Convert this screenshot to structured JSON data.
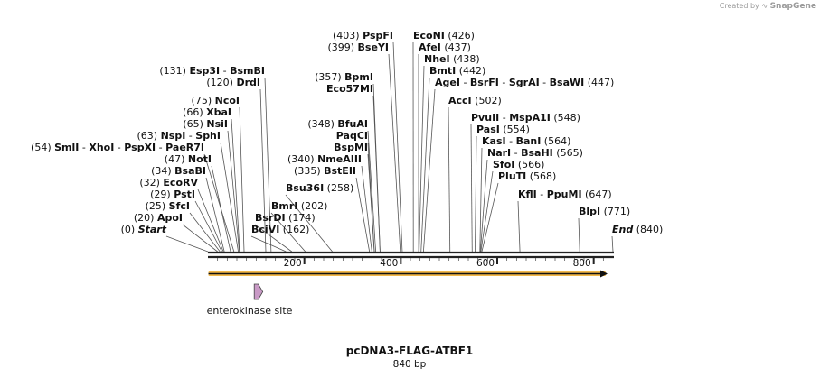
{
  "credit": {
    "prefix": "Created by",
    "brand": "SnapGene"
  },
  "plasmid": {
    "name": "pcDNA3-FLAG-ATBF1",
    "length_label": "840 bp",
    "length": 840
  },
  "axis": {
    "ticks": [
      200,
      400,
      600,
      800
    ]
  },
  "feature": {
    "name": "enterokinase site",
    "start": 96,
    "end": 110,
    "color": "#c99ac6"
  },
  "orf_arrow": {
    "start": 1,
    "end": 825,
    "color": "#f2b94b"
  },
  "site_groups": [
    {
      "pos": 0,
      "labels": [
        {
          "pos": "(0)",
          "names": [
            "Start"
          ],
          "italic": true
        }
      ]
    },
    {
      "pos": 20,
      "labels": [
        {
          "pos": "(20)",
          "names": [
            "ApoI"
          ]
        }
      ]
    },
    {
      "pos": 25,
      "labels": [
        {
          "pos": "(25)",
          "names": [
            "SfcI"
          ]
        }
      ]
    },
    {
      "pos": 29,
      "labels": [
        {
          "pos": "(29)",
          "names": [
            "PstI"
          ]
        }
      ]
    },
    {
      "pos": 32,
      "labels": [
        {
          "pos": "(32)",
          "names": [
            "EcoRV"
          ]
        }
      ]
    },
    {
      "pos": 34,
      "labels": [
        {
          "pos": "(34)",
          "names": [
            "BsaBI"
          ]
        }
      ]
    },
    {
      "pos": 47,
      "labels": [
        {
          "pos": "(47)",
          "names": [
            "NotI"
          ]
        }
      ]
    },
    {
      "pos": 54,
      "labels": [
        {
          "pos": "(54)",
          "names": [
            "SmlI",
            "XhoI",
            "PspXI",
            "PaeR7I"
          ]
        }
      ]
    },
    {
      "pos": 63,
      "labels": [
        {
          "pos": "(63)",
          "names": [
            "NspI",
            "SphI"
          ]
        }
      ]
    },
    {
      "pos": 65,
      "labels": [
        {
          "pos": "(65)",
          "names": [
            "NsiI"
          ]
        }
      ]
    },
    {
      "pos": 66,
      "labels": [
        {
          "pos": "(66)",
          "names": [
            "XbaI"
          ]
        }
      ]
    },
    {
      "pos": 75,
      "labels": [
        {
          "pos": "(75)",
          "names": [
            "NcoI"
          ]
        }
      ]
    },
    {
      "pos": 120,
      "labels": [
        {
          "pos": "(120)",
          "names": [
            "DrdI"
          ]
        }
      ]
    },
    {
      "pos": 131,
      "labels": [
        {
          "pos": "(131)",
          "names": [
            "Esp3I",
            "BsmBI"
          ]
        }
      ]
    },
    {
      "pos": 162,
      "labels": [
        {
          "pos": "(162)",
          "names": [
            "BciVI"
          ]
        }
      ]
    },
    {
      "pos": 174,
      "labels": [
        {
          "pos": "(174)",
          "names": [
            "BsrDI"
          ]
        }
      ]
    },
    {
      "pos": 202,
      "labels": [
        {
          "pos": "(202)",
          "names": [
            "BmrI"
          ]
        }
      ]
    },
    {
      "pos": 258,
      "labels": [
        {
          "pos": "(258)",
          "names": [
            "Bsu36I"
          ]
        }
      ]
    },
    {
      "pos": 335,
      "labels": [
        {
          "pos": "(335)",
          "names": [
            "BstEII"
          ]
        }
      ]
    },
    {
      "pos": 340,
      "labels": [
        {
          "pos": "(340)",
          "names": [
            "NmeAIII"
          ]
        }
      ]
    },
    {
      "pos": 345,
      "labels": [
        {
          "pos": "",
          "names": [
            "BspMI"
          ]
        }
      ]
    },
    {
      "pos": 345,
      "labels": [
        {
          "pos": "",
          "names": [
            "PaqCI"
          ]
        }
      ]
    },
    {
      "pos": 348,
      "labels": [
        {
          "pos": "(348)",
          "names": [
            "BfuAI"
          ]
        }
      ]
    },
    {
      "pos": 357,
      "labels": [
        {
          "pos": "",
          "names": [
            "Eco57MI"
          ]
        }
      ]
    },
    {
      "pos": 357,
      "labels": [
        {
          "pos": "(357)",
          "names": [
            "BpmI"
          ]
        }
      ]
    },
    {
      "pos": 399,
      "labels": [
        {
          "pos": "(399)",
          "names": [
            "BseYI"
          ]
        }
      ]
    },
    {
      "pos": 403,
      "labels": [
        {
          "pos": "(403)",
          "names": [
            "PspFI"
          ]
        }
      ]
    },
    {
      "pos": 426,
      "labels": [
        {
          "pos": "(426)",
          "names": [
            "EcoNI"
          ]
        }
      ]
    },
    {
      "pos": 437,
      "labels": [
        {
          "pos": "(437)",
          "names": [
            "AfeI"
          ]
        }
      ]
    },
    {
      "pos": 438,
      "labels": [
        {
          "pos": "(438)",
          "names": [
            "NheI"
          ]
        }
      ]
    },
    {
      "pos": 442,
      "labels": [
        {
          "pos": "(442)",
          "names": [
            "BmtI"
          ]
        }
      ]
    },
    {
      "pos": 447,
      "labels": [
        {
          "pos": "(447)",
          "names": [
            "AgeI",
            "BsrFI",
            "SgrAI",
            "BsaWI"
          ]
        }
      ]
    },
    {
      "pos": 502,
      "labels": [
        {
          "pos": "(502)",
          "names": [
            "AccI"
          ]
        }
      ]
    },
    {
      "pos": 548,
      "labels": [
        {
          "pos": "(548)",
          "names": [
            "PvuII",
            "MspA1I"
          ]
        }
      ]
    },
    {
      "pos": 554,
      "labels": [
        {
          "pos": "(554)",
          "names": [
            "PasI"
          ]
        }
      ]
    },
    {
      "pos": 564,
      "labels": [
        {
          "pos": "(564)",
          "names": [
            "KasI",
            "BanI"
          ]
        }
      ]
    },
    {
      "pos": 565,
      "labels": [
        {
          "pos": "(565)",
          "names": [
            "NarI",
            "BsaHI"
          ]
        }
      ]
    },
    {
      "pos": 566,
      "labels": [
        {
          "pos": "(566)",
          "names": [
            "SfoI"
          ]
        }
      ]
    },
    {
      "pos": 568,
      "labels": [
        {
          "pos": "(568)",
          "names": [
            "PluTI"
          ]
        }
      ]
    },
    {
      "pos": 647,
      "labels": [
        {
          "pos": "(647)",
          "names": [
            "KflI",
            "PpuMI"
          ]
        }
      ]
    },
    {
      "pos": 771,
      "labels": [
        {
          "pos": "(771)",
          "names": [
            "BlpI"
          ]
        }
      ]
    },
    {
      "pos": 840,
      "labels": [
        {
          "pos": "(840)",
          "names": [
            "End"
          ],
          "italic": true
        }
      ]
    }
  ]
}
